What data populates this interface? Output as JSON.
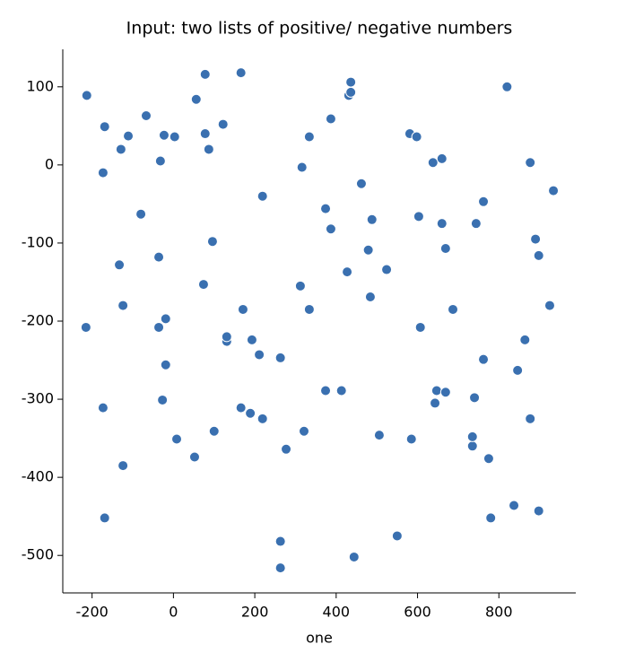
{
  "chart_data": {
    "type": "scatter",
    "title": "Input: two lists of positive/ negative numbers",
    "x_label": "one",
    "color": "#3a70b0",
    "xlim": [
      -272,
      989
    ],
    "ylim": [
      -548,
      148
    ],
    "xticks": [
      -200,
      0,
      200,
      400,
      600,
      800
    ],
    "yticks": [
      100,
      0,
      -100,
      -200,
      -300,
      -400,
      -500
    ],
    "x": [
      -213,
      -169,
      -173,
      -111,
      -129,
      -67,
      -80,
      -133,
      -124,
      -215,
      -173,
      -124,
      -169,
      -32,
      -23,
      3,
      -36,
      -36,
      -19,
      -19,
      -27,
      8,
      78,
      56,
      78,
      87,
      122,
      166,
      96,
      74,
      171,
      131,
      131,
      193,
      211,
      166,
      189,
      219,
      100,
      52,
      219,
      263,
      277,
      263,
      263,
      316,
      334,
      312,
      334,
      321,
      387,
      374,
      387,
      374,
      413,
      436,
      431,
      436,
      462,
      427,
      488,
      479,
      484,
      524,
      506,
      444,
      550,
      581,
      598,
      603,
      607,
      585,
      647,
      638,
      660,
      660,
      669,
      687,
      669,
      643,
      735,
      820,
      762,
      744,
      762,
      740,
      735,
      775,
      780,
      877,
      890,
      898,
      934,
      925,
      864,
      846,
      877,
      837,
      898
    ],
    "values": [
      89,
      49,
      -10,
      37,
      20,
      63,
      -63,
      -128,
      -180,
      -208,
      -311,
      -385,
      -452,
      5,
      38,
      36,
      -118,
      -208,
      -197,
      -256,
      -301,
      -351,
      116,
      84,
      40,
      20,
      52,
      118,
      -98,
      -153,
      -185,
      -226,
      -220,
      -224,
      -243,
      -311,
      -318,
      -325,
      -341,
      -374,
      -40,
      -247,
      -364,
      -482,
      -516,
      -3,
      36,
      -155,
      -185,
      -341,
      59,
      -56,
      -82,
      -289,
      -289,
      106,
      89,
      93,
      -24,
      -137,
      -70,
      -109,
      -169,
      -134,
      -346,
      -502,
      -475,
      40,
      36,
      -66,
      -208,
      -351,
      -289,
      3,
      8,
      -75,
      -107,
      -185,
      -291,
      -305,
      -360,
      100,
      -47,
      -75,
      -249,
      -298,
      -348,
      -376,
      -452,
      3,
      -95,
      -116,
      -33,
      -180,
      -224,
      -263,
      -325,
      -436,
      -443
    ]
  }
}
